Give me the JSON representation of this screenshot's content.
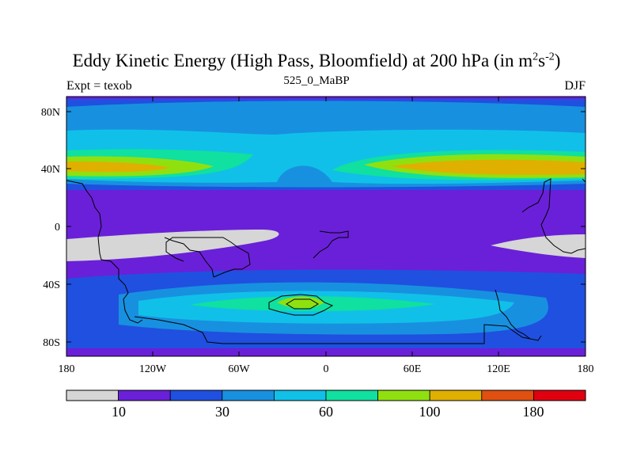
{
  "title_text": "Eddy Kinetic Energy (High Pass, Bloomfield) at 200 hPa (in m",
  "title_sup1": "2",
  "title_s": "s",
  "title_sup2": "-2",
  "title_close": ")",
  "subtitle": {
    "left": "Expt = texob",
    "center": "525_0_MaBP",
    "right": "DJF"
  },
  "axes": {
    "x_labels": [
      "180",
      "120W",
      "60W",
      "0",
      "60E",
      "120E",
      "180"
    ],
    "y_labels": [
      "80N",
      "40N",
      "0",
      "40S",
      "80S"
    ]
  },
  "colorbar": {
    "colors": [
      "#d6d6d6",
      "#6a20d8",
      "#2050e0",
      "#1890e0",
      "#10c0e8",
      "#10e0a0",
      "#90e010",
      "#e0b000",
      "#e05010",
      "#e00010"
    ],
    "labels": [
      "10",
      "30",
      "60",
      "100",
      "180"
    ]
  },
  "palette": {
    "gray": "#d6d6d6",
    "purple": "#6a20d8",
    "blue": "#2050e0",
    "mid_blue": "#1890e0",
    "cyan": "#10c0e8",
    "teal": "#10e0a0",
    "green": "#90e010",
    "orange": "#e0b000"
  }
}
